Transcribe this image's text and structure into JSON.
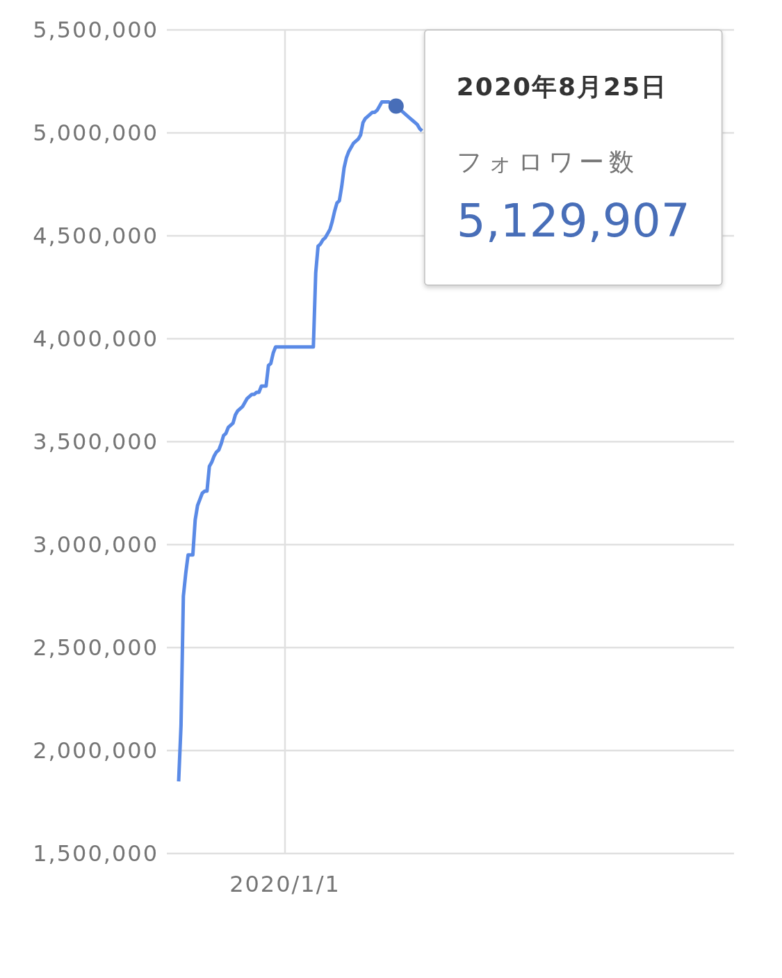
{
  "chart_data": {
    "type": "line",
    "categories": [
      null,
      null,
      null,
      null,
      null,
      null,
      null,
      null,
      null,
      null,
      null,
      null,
      null,
      null,
      null,
      null,
      null,
      null,
      null,
      null,
      null,
      null,
      null,
      null,
      null,
      null,
      null,
      null,
      null,
      null,
      null,
      null,
      null,
      null,
      null,
      null,
      null,
      null,
      null,
      null,
      null,
      null,
      null,
      null,
      null,
      null,
      null,
      null,
      null,
      null,
      "2020/1/1",
      null,
      null,
      null,
      null,
      null,
      null,
      null,
      null,
      null,
      null,
      null,
      null,
      null,
      null,
      null,
      null,
      null,
      null,
      null,
      null,
      null,
      null,
      null,
      null,
      null,
      null,
      null,
      null,
      null,
      null,
      null,
      null,
      null,
      null,
      null,
      null,
      null,
      null,
      null,
      null,
      null,
      null,
      null,
      null,
      null,
      null,
      null,
      null,
      null,
      null,
      null,
      null,
      null,
      null,
      null,
      null,
      null,
      null,
      null,
      null,
      null,
      null,
      null,
      null,
      null,
      null,
      null,
      null,
      null,
      null,
      null,
      null,
      null,
      null,
      null,
      null,
      null,
      null,
      null,
      null,
      null,
      null,
      null,
      null,
      null,
      null,
      null,
      null,
      null,
      null,
      null,
      null,
      null,
      null,
      null,
      null,
      null,
      null,
      null,
      null,
      null,
      null,
      null,
      null,
      null,
      null,
      null,
      null,
      null,
      null,
      null,
      null,
      null,
      null,
      null,
      null,
      null,
      null,
      null,
      null,
      null,
      null,
      null,
      null,
      null,
      null,
      null,
      null,
      null,
      null,
      null,
      null,
      null,
      null,
      null,
      null,
      null,
      null,
      null,
      null,
      null,
      null,
      null,
      null,
      null,
      null,
      null,
      null,
      null,
      null,
      null,
      null,
      null,
      null,
      null,
      null,
      null,
      null,
      null,
      null,
      null,
      null,
      null,
      null,
      null,
      null,
      null,
      null,
      null,
      null,
      null,
      null,
      null,
      null,
      null,
      null,
      null,
      null,
      null,
      null,
      null,
      null,
      null,
      null,
      null,
      null,
      null,
      null,
      null,
      null
    ],
    "series": [
      {
        "name": "フォロワー数",
        "color": "#5a8ae6",
        "values": [
          null,
          null,
          null,
          null,
          null,
          1850000,
          2120000,
          2750000,
          2860000,
          2950000,
          2950000,
          2950000,
          3120000,
          3190000,
          3220000,
          3250000,
          3260000,
          3260000,
          3380000,
          3400000,
          3430000,
          3450000,
          3460000,
          3490000,
          3530000,
          3540000,
          3570000,
          3580000,
          3590000,
          3630000,
          3650000,
          3660000,
          3670000,
          3690000,
          3710000,
          3720000,
          3730000,
          3730000,
          3740000,
          3740000,
          3770000,
          3770000,
          3770000,
          3870000,
          3880000,
          3930000,
          3960000,
          3960000,
          3960000,
          3960000,
          3960000,
          3960000,
          3960000,
          3960000,
          3960000,
          3960000,
          3960000,
          3960000,
          3960000,
          3960000,
          3960000,
          3960000,
          3960000,
          4320000,
          4450000,
          4460000,
          4480000,
          4490000,
          4510000,
          4530000,
          4570000,
          4620000,
          4660000,
          4670000,
          4740000,
          4830000,
          4880000,
          4910000,
          4930000,
          4950000,
          4960000,
          4970000,
          4990000,
          5050000,
          5070000,
          5080000,
          5090000,
          5100000,
          5100000,
          5110000,
          5130000,
          5150000,
          5150000,
          5150000,
          5150000,
          5140000,
          null,
          5129907,
          5120000,
          5110000,
          5100000,
          5090000,
          5080000,
          5070000,
          5060000,
          5050000,
          5040000,
          5020000,
          5010000,
          null,
          null,
          null,
          null,
          null,
          null,
          null,
          null,
          null,
          null,
          null,
          null,
          null,
          null,
          null,
          null,
          null,
          null,
          null,
          null,
          null,
          null,
          null,
          null,
          null,
          null,
          null,
          null,
          null,
          null,
          null,
          null,
          null,
          null,
          null,
          null,
          null,
          null,
          null,
          null,
          null,
          null,
          null,
          null,
          null,
          null,
          null,
          null,
          null,
          null,
          null,
          null,
          null,
          null,
          null,
          null,
          null,
          null,
          null,
          null,
          null,
          null,
          null,
          null,
          null,
          null,
          null,
          null,
          null,
          null,
          null,
          null,
          null,
          null,
          null,
          null,
          null,
          null,
          null,
          null,
          null,
          null,
          null,
          null,
          null,
          null,
          null,
          null,
          null,
          null,
          null,
          null,
          null,
          null,
          null,
          null,
          null,
          null,
          null,
          null,
          null,
          null,
          null,
          null,
          null,
          null,
          null,
          null,
          null,
          null,
          null,
          null,
          null,
          null,
          null,
          null,
          null,
          null,
          null,
          null,
          null,
          null,
          null,
          null,
          null,
          null,
          null,
          null,
          null,
          null,
          null,
          null
        ],
        "value_labels": [
          null,
          null,
          null,
          null,
          null,
          null,
          null,
          null,
          null,
          null,
          null,
          null,
          null,
          null,
          null,
          null,
          null,
          null,
          null,
          null,
          null,
          null,
          null,
          null,
          null,
          null,
          null,
          null,
          null,
          null,
          null,
          null,
          null,
          null,
          null,
          null,
          null,
          null,
          null,
          null,
          null,
          null,
          null,
          null,
          null,
          null,
          null,
          null,
          null,
          null,
          null,
          null,
          null,
          null,
          null,
          null,
          null,
          null,
          null,
          null,
          null,
          null,
          null,
          null,
          null,
          null,
          null,
          null,
          null,
          null,
          null,
          null,
          null,
          null,
          null,
          null,
          null,
          null,
          null,
          null,
          null,
          null,
          null,
          null,
          null,
          null,
          null,
          null,
          null,
          null,
          null,
          null,
          null,
          null,
          null,
          null,
          null,
          "5,129,907",
          null,
          null,
          null,
          null,
          null,
          null,
          null,
          null,
          null,
          null,
          null,
          null,
          null,
          null,
          null,
          null,
          null,
          null,
          null,
          null,
          null,
          null,
          null,
          null,
          null,
          null,
          null,
          null,
          null,
          null,
          null,
          null,
          null,
          null,
          null,
          null,
          null,
          null,
          null,
          null,
          null,
          null,
          null,
          null,
          null,
          null,
          null,
          null,
          null,
          null,
          null,
          null,
          null,
          null,
          null,
          null,
          null,
          null,
          null,
          null,
          null,
          null,
          null,
          null,
          null,
          null,
          null,
          null,
          null,
          null,
          null,
          null,
          null,
          null,
          null,
          null,
          null,
          null,
          null,
          null,
          null,
          null,
          null,
          null,
          null,
          null,
          null,
          null,
          null,
          null,
          null,
          null,
          null,
          null,
          null,
          null,
          null,
          null,
          null,
          null,
          null,
          null,
          null,
          null,
          null,
          null,
          null,
          null,
          null,
          null,
          null,
          null,
          null,
          null,
          null,
          null,
          null,
          null,
          null,
          null,
          null,
          null,
          null,
          null,
          null,
          null,
          null,
          null,
          null,
          null,
          null,
          null,
          null,
          null,
          null,
          null,
          null,
          null,
          null,
          null,
          null,
          null,
          null
        ]
      }
    ],
    "ylim": [
      1500000,
      5500000
    ],
    "yticks": [
      {
        "value": 1500000,
        "label": "1,500,000"
      },
      {
        "value": 2000000,
        "label": "2,000,000"
      },
      {
        "value": 2500000,
        "label": "2,500,000"
      },
      {
        "value": 3000000,
        "label": "3,000,000"
      },
      {
        "value": 3500000,
        "label": "3,500,000"
      },
      {
        "value": 4000000,
        "label": "4,000,000"
      },
      {
        "value": 4500000,
        "label": "4,500,000"
      },
      {
        "value": 5000000,
        "label": "5,000,000"
      },
      {
        "value": 5500000,
        "label": "5,500,000"
      }
    ],
    "grid": true,
    "line_style": "solid",
    "annotations": [
      "2020年8月25日"
    ]
  }
}
